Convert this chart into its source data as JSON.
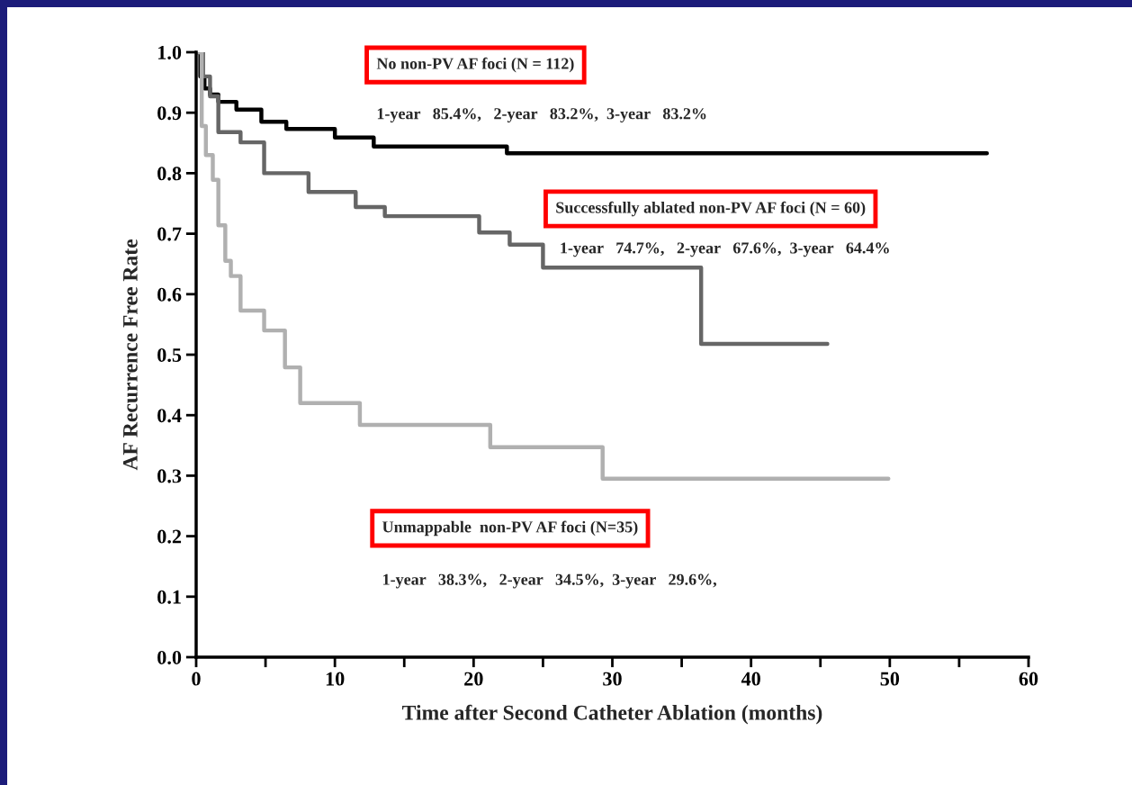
{
  "chart_data": {
    "type": "step",
    "xlabel": "Time after Second Catheter Ablation (months)",
    "ylabel": "AF Recurrence Free Rate",
    "xlim": [
      0,
      60
    ],
    "ylim": [
      0,
      1.0
    ],
    "xticks": [
      0,
      {
        "value": 5,
        "label": null
      },
      10,
      {
        "value": 15,
        "label": null
      },
      20,
      {
        "value": 25,
        "label": null
      },
      30,
      {
        "value": 35,
        "label": null
      },
      40,
      {
        "value": 45,
        "label": null
      },
      50,
      {
        "value": 55,
        "label": null
      },
      60
    ],
    "yticks": [
      {
        "value": 0,
        "label": "0.0"
      },
      0.1,
      0.2,
      0.3,
      0.4,
      0.5,
      0.6,
      0.7,
      0.8,
      0.9,
      {
        "value": 1,
        "label": "1.0"
      }
    ],
    "grid": false,
    "legend": false,
    "line_style": "solid",
    "marker": "none",
    "series": [
      {
        "color": "#000000",
        "x": [
          0,
          0.3,
          0.6,
          1.0,
          1.6,
          2.9,
          4.7,
          6.5,
          10.0,
          12.8,
          22.4,
          57.0
        ],
        "values": [
          1.0,
          0.96,
          0.94,
          0.93,
          0.918,
          0.905,
          0.885,
          0.873,
          0.859,
          0.844,
          0.833,
          0.833
        ]
      },
      {
        "color": "#666666",
        "x": [
          0,
          0.5,
          1.0,
          1.6,
          3.2,
          4.9,
          8.1,
          11.5,
          13.6,
          20.4,
          22.6,
          25.0,
          36.4,
          45.5
        ],
        "values": [
          1.0,
          0.96,
          0.927,
          0.868,
          0.851,
          0.8,
          0.769,
          0.744,
          0.729,
          0.702,
          0.682,
          0.644,
          0.518,
          0.518
        ]
      },
      {
        "color": "#b0b0b0",
        "x": [
          0,
          0.4,
          0.7,
          1.2,
          1.6,
          2.1,
          2.5,
          3.2,
          4.9,
          6.4,
          7.5,
          11.8,
          21.2,
          29.3,
          49.9
        ],
        "values": [
          1.0,
          0.878,
          0.83,
          0.789,
          0.714,
          0.655,
          0.63,
          0.573,
          0.54,
          0.479,
          0.42,
          0.384,
          0.347,
          0.295,
          0.295
        ]
      }
    ],
    "annotations": [
      "No non-PV AF foci (N = 112)",
      "1-year   85.4%,   2-year   83.2%,  3-year   83.2%",
      "Successfully ablated non-PV AF foci (N = 60)",
      "1-year   74.7%,   2-year   67.6%,  3-year   64.4%",
      "Unmappable  non-PV AF foci (N=35)",
      "1-year   38.3%,   2-year   34.5%,  3-year   29.6%,"
    ]
  }
}
